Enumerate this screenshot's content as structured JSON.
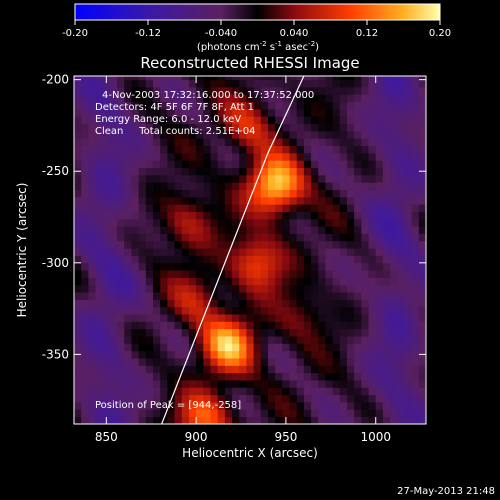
{
  "chart_data": {
    "type": "heatmap",
    "title": "Reconstructed RHESSI Image",
    "xlabel": "Heliocentric X (arcsec)",
    "ylabel": "Heliocentric Y (arcsec)",
    "xlim": [
      832,
      1028
    ],
    "ylim": [
      -388,
      -198
    ],
    "x_ticks": [
      850,
      900,
      950,
      1000
    ],
    "y_ticks": [
      -200,
      -250,
      -300,
      -350
    ],
    "colorbar": {
      "range": [
        -0.2,
        0.2
      ],
      "ticks": [
        -0.2,
        -0.12,
        -0.04,
        0.04,
        0.12,
        0.2
      ],
      "tick_labels": [
        "-0.20",
        "-0.12",
        "-0.040",
        "0.040",
        "0.12",
        "0.20"
      ],
      "units_prefix": "(photons cm",
      "units_exp1": "-2",
      "units_mid1": " s",
      "units_exp2": "-1",
      "units_mid2": " asec",
      "units_exp3": "-2",
      "units_suffix": ")"
    },
    "annotations": [
      "4-Nov-2003 17:32:16.000 to 17:37:52.000",
      "Detectors: 4F 5F 6F 7F 8F, Att 1",
      "Energy Range: 6.0 - 12.0 keV",
      "Clean     Total counts: 2.51E+04"
    ],
    "peak_label": "Position of Peak = [944,-258]",
    "peak": [
      944,
      -258
    ],
    "sources": [
      {
        "x": 944,
        "y": -258,
        "intensity": 0.2
      },
      {
        "x": 918,
        "y": -345,
        "intensity": 0.17
      },
      {
        "x": 934,
        "y": -300,
        "intensity": 0.12
      },
      {
        "x": 905,
        "y": -385,
        "intensity": 0.13
      },
      {
        "x": 928,
        "y": -225,
        "intensity": 0.09
      },
      {
        "x": 895,
        "y": -278,
        "intensity": 0.08
      },
      {
        "x": 900,
        "y": -320,
        "intensity": 0.07
      },
      {
        "x": 958,
        "y": -330,
        "intensity": 0.05
      }
    ],
    "limb_line": [
      [
        880,
        -390
      ],
      [
        940,
        -240
      ],
      [
        960,
        -198
      ]
    ]
  },
  "footer": {
    "timestamp": "27-May-2013 21:48"
  }
}
